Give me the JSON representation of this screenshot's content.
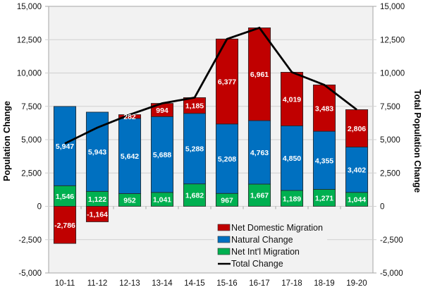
{
  "chart_data": {
    "type": "bar",
    "stacked": true,
    "categories": [
      "10-11",
      "11-12",
      "12-13",
      "13-14",
      "14-15",
      "15-16",
      "16-17",
      "17-18",
      "18-19",
      "19-20"
    ],
    "series": [
      {
        "name": "Net Int'l Migration",
        "kind": "bar",
        "color": "#00b050",
        "values": [
          1546,
          1122,
          952,
          1041,
          1682,
          967,
          1667,
          1189,
          1271,
          1044
        ],
        "labels": [
          "1,546",
          "1,122",
          "952",
          "1,041",
          "1,682",
          "967",
          "1,667",
          "1,189",
          "1,271",
          "1,044"
        ]
      },
      {
        "name": "Natural Change",
        "kind": "bar",
        "color": "#0070c0",
        "values": [
          5947,
          5943,
          5642,
          5688,
          5288,
          5208,
          4763,
          4850,
          4355,
          3402
        ],
        "labels": [
          "5,947",
          "5,943",
          "5,642",
          "5,688",
          "5,288",
          "5,208",
          "4,763",
          "4,850",
          "4,355",
          "3,402"
        ]
      },
      {
        "name": "Net Domestic Migration",
        "kind": "bar",
        "color": "#c00000",
        "values": [
          -2786,
          -1164,
          282,
          994,
          1185,
          6377,
          6961,
          4019,
          3483,
          2806
        ],
        "labels": [
          "-2,786",
          "-1,164",
          "282",
          "994",
          "1,185",
          "6,377",
          "6,961",
          "4,019",
          "3,483",
          "2,806"
        ]
      },
      {
        "name": "Total Change",
        "kind": "line",
        "color": "#000000",
        "axis": "right",
        "values": [
          4707,
          5901,
          6876,
          7723,
          8155,
          12552,
          13391,
          10058,
          9109,
          7252
        ]
      }
    ],
    "legend": {
      "position": "bottom-right-inside",
      "entries": [
        "Net Domestic Migration",
        "Natural Change",
        "Net Int'l Migration",
        "Total Change"
      ]
    },
    "ylabel": "Population Change",
    "y2label": "Total Population Change",
    "xlabel": "",
    "title": "",
    "ylim": [
      -5000,
      15000
    ],
    "y2lim": [
      -5000,
      15000
    ],
    "yticks": [
      -5000,
      -2500,
      0,
      2500,
      5000,
      7500,
      10000,
      12500,
      15000
    ],
    "ytick_labels": [
      "-5,000",
      "-2,500",
      "0",
      "2,500",
      "5,000",
      "7,500",
      "10,000",
      "12,500",
      "15,000"
    ],
    "grid": true,
    "plot_background": "#f2f2f2"
  }
}
